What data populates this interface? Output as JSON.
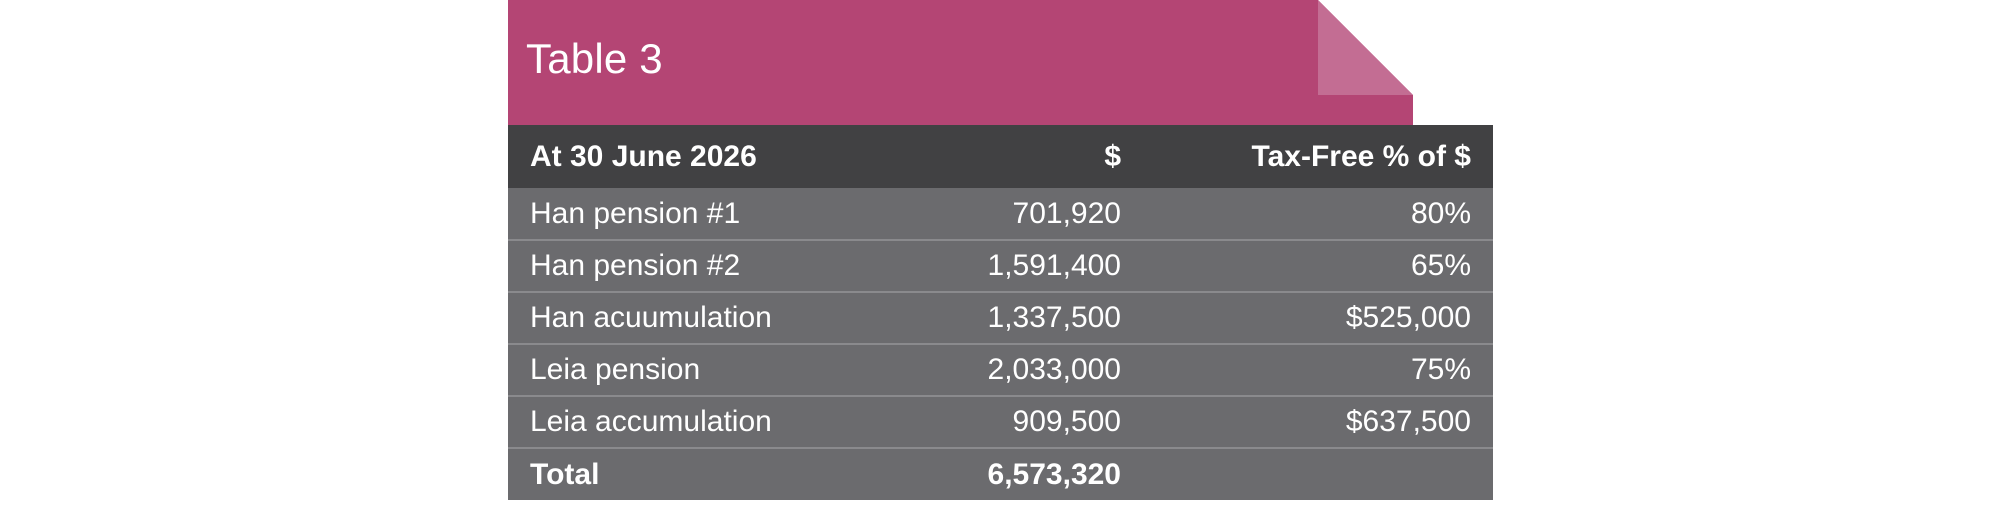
{
  "title": "Table 3",
  "columns": [
    "At 30 June 2026",
    "$",
    "Tax-Free % of $"
  ],
  "rows": [
    {
      "label": "Han pension #1",
      "amount": "701,920",
      "tax_free": "80%"
    },
    {
      "label": "Han pension #2",
      "amount": "1,591,400",
      "tax_free": "65%"
    },
    {
      "label": "Han acuumulation",
      "amount": "1,337,500",
      "tax_free": "$525,000"
    },
    {
      "label": "Leia pension",
      "amount": "2,033,000",
      "tax_free": "75%"
    },
    {
      "label": "Leia accumulation",
      "amount": "909,500",
      "tax_free": "$637,500"
    }
  ],
  "total": {
    "label": "Total",
    "amount": "6,573,320",
    "tax_free": ""
  },
  "colors": {
    "title_bar": "#b44574",
    "fold": "#c36d93",
    "header_row": "#414143",
    "body_row": "#6b6b6e",
    "row_divider": "#8a8a8d"
  }
}
